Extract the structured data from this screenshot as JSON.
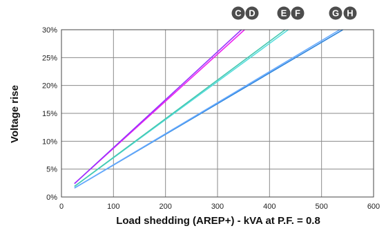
{
  "chart_data": {
    "type": "line",
    "xlabel": "Load shedding (AREP+) - kVA at P.F. = 0.8",
    "ylabel": "Voltage rise",
    "xlim": [
      0,
      600
    ],
    "ylim": [
      0,
      30
    ],
    "xticks": [
      "0",
      "100",
      "200",
      "300",
      "400",
      "500",
      "600"
    ],
    "yticks": [
      "0%",
      "5%",
      "10%",
      "15%",
      "20%",
      "25%",
      "30%"
    ],
    "grid": true,
    "series": [
      {
        "name": "C",
        "color": "#ee22ee",
        "x": [
          25,
          352
        ],
        "y": [
          2.4,
          30
        ]
      },
      {
        "name": "D",
        "color": "#9933ff",
        "x": [
          25,
          346
        ],
        "y": [
          2.4,
          30
        ]
      },
      {
        "name": "E",
        "color": "#55dddd",
        "x": [
          25,
          436
        ],
        "y": [
          1.9,
          30
        ]
      },
      {
        "name": "F",
        "color": "#44c8b0",
        "x": [
          25,
          430
        ],
        "y": [
          1.9,
          30
        ]
      },
      {
        "name": "G",
        "color": "#3388dd",
        "x": [
          25,
          541
        ],
        "y": [
          1.6,
          30
        ]
      },
      {
        "name": "H",
        "color": "#66aaff",
        "x": [
          25,
          535
        ],
        "y": [
          1.6,
          30
        ]
      }
    ],
    "badges": [
      "C",
      "D",
      "E",
      "F",
      "G",
      "H"
    ]
  }
}
